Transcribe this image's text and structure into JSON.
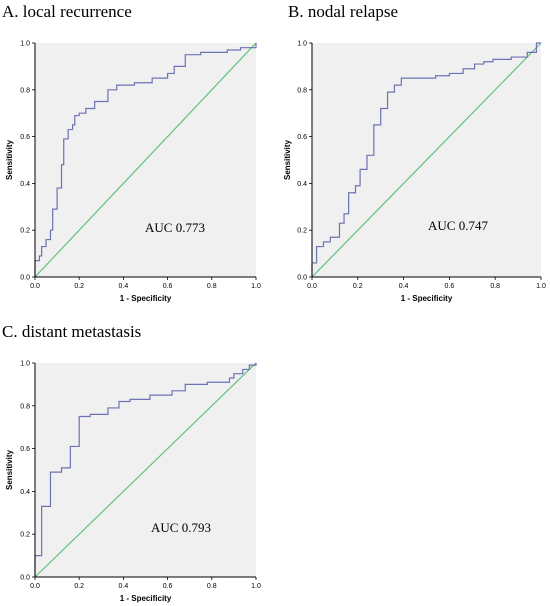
{
  "colors": {
    "roc_line": "#6c72b4",
    "reference_line": "#5ec47a",
    "plot_background": "#f0f0f0",
    "axis": "#000000"
  },
  "chart_data": [
    {
      "type": "line",
      "title": "A. local recurrence",
      "xlabel": "1 - Specificity",
      "ylabel": "Sensitivity",
      "xlim": [
        0,
        1
      ],
      "ylim": [
        0,
        1
      ],
      "xticks": [
        "0.0",
        "0.2",
        "0.4",
        "0.6",
        "0.8",
        "1.0"
      ],
      "yticks": [
        "0.0",
        "0.2",
        "0.4",
        "0.6",
        "0.8",
        "1.0"
      ],
      "annotation": "AUC  0.773",
      "grid": false,
      "series": [
        {
          "role": "roc",
          "points": [
            [
              0,
              0
            ],
            [
              0,
              0.07
            ],
            [
              0.02,
              0.07
            ],
            [
              0.02,
              0.09
            ],
            [
              0.03,
              0.09
            ],
            [
              0.03,
              0.13
            ],
            [
              0.05,
              0.13
            ],
            [
              0.05,
              0.16
            ],
            [
              0.07,
              0.16
            ],
            [
              0.07,
              0.2
            ],
            [
              0.08,
              0.2
            ],
            [
              0.08,
              0.29
            ],
            [
              0.1,
              0.29
            ],
            [
              0.1,
              0.38
            ],
            [
              0.12,
              0.38
            ],
            [
              0.12,
              0.48
            ],
            [
              0.13,
              0.48
            ],
            [
              0.13,
              0.59
            ],
            [
              0.15,
              0.59
            ],
            [
              0.15,
              0.63
            ],
            [
              0.17,
              0.63
            ],
            [
              0.17,
              0.65
            ],
            [
              0.18,
              0.65
            ],
            [
              0.18,
              0.69
            ],
            [
              0.2,
              0.69
            ],
            [
              0.2,
              0.7
            ],
            [
              0.23,
              0.7
            ],
            [
              0.23,
              0.72
            ],
            [
              0.27,
              0.72
            ],
            [
              0.27,
              0.75
            ],
            [
              0.33,
              0.75
            ],
            [
              0.33,
              0.8
            ],
            [
              0.37,
              0.8
            ],
            [
              0.37,
              0.82
            ],
            [
              0.45,
              0.82
            ],
            [
              0.45,
              0.83
            ],
            [
              0.53,
              0.83
            ],
            [
              0.53,
              0.85
            ],
            [
              0.6,
              0.85
            ],
            [
              0.6,
              0.87
            ],
            [
              0.63,
              0.87
            ],
            [
              0.63,
              0.9
            ],
            [
              0.68,
              0.9
            ],
            [
              0.68,
              0.95
            ],
            [
              0.75,
              0.95
            ],
            [
              0.75,
              0.96
            ],
            [
              0.87,
              0.96
            ],
            [
              0.87,
              0.97
            ],
            [
              0.93,
              0.97
            ],
            [
              0.93,
              0.98
            ],
            [
              1,
              0.98
            ],
            [
              1,
              1
            ]
          ]
        },
        {
          "role": "reference",
          "points": [
            [
              0,
              0
            ],
            [
              1,
              1
            ]
          ]
        }
      ]
    },
    {
      "type": "line",
      "title": "B. nodal relapse",
      "xlabel": "1 - Specificity",
      "ylabel": "Sensitivity",
      "xlim": [
        0,
        1
      ],
      "ylim": [
        0,
        1
      ],
      "xticks": [
        "0.0",
        "0.2",
        "0.4",
        "0.6",
        "0.8",
        "1.0"
      ],
      "yticks": [
        "0.0",
        "0.2",
        "0.4",
        "0.6",
        "0.8",
        "1.0"
      ],
      "annotation": "AUC  0.747",
      "grid": false,
      "series": [
        {
          "role": "roc",
          "points": [
            [
              0,
              0
            ],
            [
              0,
              0.06
            ],
            [
              0.02,
              0.06
            ],
            [
              0.02,
              0.13
            ],
            [
              0.05,
              0.13
            ],
            [
              0.05,
              0.15
            ],
            [
              0.08,
              0.15
            ],
            [
              0.08,
              0.17
            ],
            [
              0.12,
              0.17
            ],
            [
              0.12,
              0.23
            ],
            [
              0.14,
              0.23
            ],
            [
              0.14,
              0.27
            ],
            [
              0.16,
              0.27
            ],
            [
              0.16,
              0.36
            ],
            [
              0.19,
              0.36
            ],
            [
              0.19,
              0.39
            ],
            [
              0.21,
              0.39
            ],
            [
              0.21,
              0.46
            ],
            [
              0.24,
              0.46
            ],
            [
              0.24,
              0.52
            ],
            [
              0.27,
              0.52
            ],
            [
              0.27,
              0.65
            ],
            [
              0.3,
              0.65
            ],
            [
              0.3,
              0.72
            ],
            [
              0.33,
              0.72
            ],
            [
              0.33,
              0.79
            ],
            [
              0.36,
              0.79
            ],
            [
              0.36,
              0.82
            ],
            [
              0.39,
              0.82
            ],
            [
              0.39,
              0.85
            ],
            [
              0.54,
              0.85
            ],
            [
              0.54,
              0.86
            ],
            [
              0.6,
              0.86
            ],
            [
              0.6,
              0.87
            ],
            [
              0.66,
              0.87
            ],
            [
              0.66,
              0.89
            ],
            [
              0.71,
              0.89
            ],
            [
              0.71,
              0.91
            ],
            [
              0.75,
              0.91
            ],
            [
              0.75,
              0.92
            ],
            [
              0.79,
              0.92
            ],
            [
              0.79,
              0.93
            ],
            [
              0.87,
              0.93
            ],
            [
              0.87,
              0.94
            ],
            [
              0.94,
              0.94
            ],
            [
              0.94,
              0.96
            ],
            [
              0.98,
              0.96
            ],
            [
              0.98,
              1
            ],
            [
              1,
              1
            ]
          ]
        },
        {
          "role": "reference",
          "points": [
            [
              0,
              0
            ],
            [
              1,
              1
            ]
          ]
        }
      ]
    },
    {
      "type": "line",
      "title": "C. distant metastasis",
      "xlabel": "1 - Specificity",
      "ylabel": "Sensitivity",
      "xlim": [
        0,
        1
      ],
      "ylim": [
        0,
        1
      ],
      "xticks": [
        "0.0",
        "0.2",
        "0.4",
        "0.6",
        "0.8",
        "1.0"
      ],
      "yticks": [
        "0.0",
        "0.2",
        "0.4",
        "0.6",
        "0.8",
        "1.0"
      ],
      "annotation": "AUC  0.793",
      "grid": false,
      "series": [
        {
          "role": "roc",
          "points": [
            [
              0,
              0
            ],
            [
              0,
              0.1
            ],
            [
              0.03,
              0.1
            ],
            [
              0.03,
              0.33
            ],
            [
              0.07,
              0.33
            ],
            [
              0.07,
              0.49
            ],
            [
              0.12,
              0.49
            ],
            [
              0.12,
              0.51
            ],
            [
              0.16,
              0.51
            ],
            [
              0.16,
              0.61
            ],
            [
              0.2,
              0.61
            ],
            [
              0.2,
              0.75
            ],
            [
              0.25,
              0.75
            ],
            [
              0.25,
              0.76
            ],
            [
              0.33,
              0.76
            ],
            [
              0.33,
              0.79
            ],
            [
              0.38,
              0.79
            ],
            [
              0.38,
              0.82
            ],
            [
              0.43,
              0.82
            ],
            [
              0.43,
              0.83
            ],
            [
              0.52,
              0.83
            ],
            [
              0.52,
              0.85
            ],
            [
              0.62,
              0.85
            ],
            [
              0.62,
              0.87
            ],
            [
              0.68,
              0.87
            ],
            [
              0.68,
              0.9
            ],
            [
              0.78,
              0.9
            ],
            [
              0.78,
              0.91
            ],
            [
              0.88,
              0.91
            ],
            [
              0.88,
              0.93
            ],
            [
              0.9,
              0.93
            ],
            [
              0.9,
              0.95
            ],
            [
              0.94,
              0.95
            ],
            [
              0.94,
              0.97
            ],
            [
              0.97,
              0.97
            ],
            [
              0.97,
              0.99
            ],
            [
              1,
              0.99
            ],
            [
              1,
              1
            ]
          ]
        },
        {
          "role": "reference",
          "points": [
            [
              0,
              0
            ],
            [
              1,
              1
            ]
          ]
        }
      ]
    }
  ]
}
